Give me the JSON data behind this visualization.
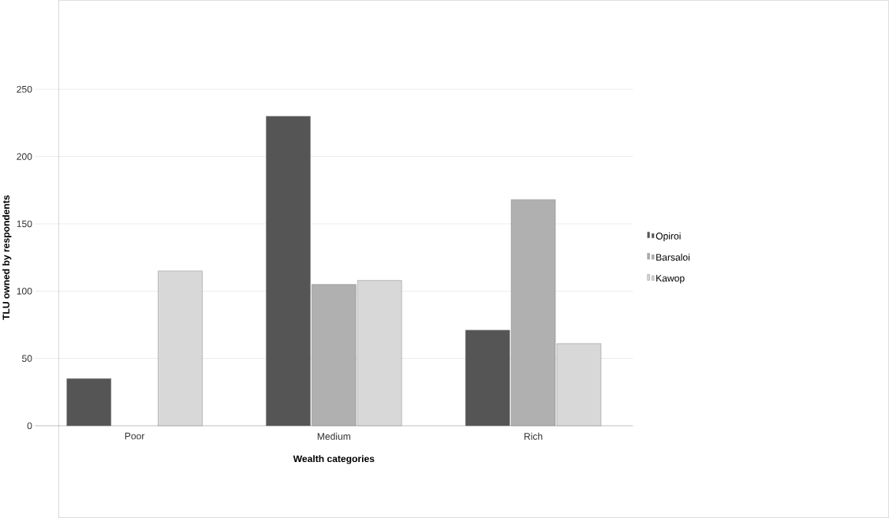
{
  "chart_data": {
    "type": "bar",
    "xlabel": "Wealth categories",
    "ylabel": "TLU owned by respondents",
    "categories": [
      "Poor",
      "Medium",
      "Rich"
    ],
    "series": [
      {
        "name": "Opiroi",
        "color": "#555555",
        "values": [
          35,
          230,
          71
        ]
      },
      {
        "name": "Barsaloi",
        "color": "#b0b0b0",
        "values": [
          null,
          105,
          168
        ]
      },
      {
        "name": "Kawop",
        "color": "#d8d8d8",
        "values": [
          115,
          108,
          61
        ]
      }
    ],
    "ylim": [
      0,
      250
    ],
    "yticks": [
      0,
      50,
      100,
      150,
      200,
      250
    ],
    "grid": "y",
    "legend": "right"
  }
}
